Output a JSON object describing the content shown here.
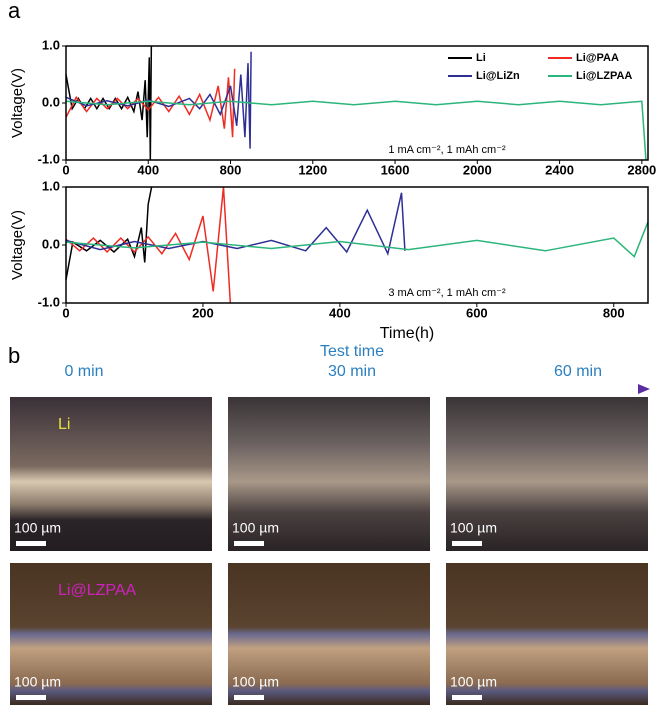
{
  "panel_a_label": "a",
  "chart_data": [
    {
      "type": "line",
      "ylabel": "Voltage(V)",
      "annotation": "1 mA cm⁻², 1 mAh cm⁻²",
      "xlim": [
        0,
        2830
      ],
      "xticks": [
        0,
        400,
        800,
        1200,
        1600,
        2000,
        2400,
        2800
      ],
      "ylim": [
        -1,
        1
      ],
      "yticks": [
        {
          "value": -1,
          "label": "-1.0"
        },
        {
          "value": 0,
          "label": "0.0"
        },
        {
          "value": 1,
          "label": "1.0"
        }
      ],
      "grid": false,
      "legend": "upper right",
      "series": [
        {
          "name": "Li",
          "color": "#000000",
          "x": [
            0,
            30,
            60,
            90,
            120,
            150,
            180,
            210,
            240,
            270,
            300,
            330,
            350,
            370,
            385,
            395,
            405,
            410,
            415
          ],
          "values": [
            0.5,
            -0.1,
            0.08,
            -0.1,
            0.08,
            -0.1,
            0.08,
            -0.1,
            0.08,
            -0.1,
            0.1,
            -0.15,
            0.2,
            -0.3,
            0.4,
            -0.6,
            0.8,
            -1.0,
            1.0
          ]
        },
        {
          "name": "Li@PAA",
          "color": "#ee2b24",
          "x": [
            0,
            50,
            100,
            150,
            200,
            250,
            300,
            350,
            400,
            450,
            500,
            550,
            600,
            650,
            700,
            740,
            770,
            790,
            810,
            820
          ],
          "values": [
            -0.25,
            0.1,
            -0.15,
            0.08,
            -0.1,
            0.08,
            -0.1,
            0.08,
            -0.12,
            0.1,
            -0.15,
            0.12,
            -0.2,
            0.15,
            -0.3,
            0.3,
            -0.45,
            0.45,
            -0.6,
            0.6
          ]
        },
        {
          "name": "Li@LiZn",
          "color": "#2e2f95",
          "x": [
            0,
            100,
            200,
            300,
            400,
            500,
            600,
            650,
            700,
            750,
            800,
            830,
            850,
            870,
            885,
            895,
            900
          ],
          "values": [
            0.1,
            -0.05,
            0.04,
            -0.05,
            0.05,
            -0.06,
            0.08,
            -0.1,
            0.15,
            -0.2,
            0.3,
            -0.4,
            0.5,
            -0.6,
            0.7,
            -0.8,
            0.9
          ]
        },
        {
          "name": "Li@LZPAA",
          "color": "#2bb57a",
          "x": [
            0,
            200,
            400,
            600,
            800,
            1000,
            1200,
            1400,
            1600,
            1800,
            2000,
            2200,
            2400,
            2600,
            2800,
            2820
          ],
          "values": [
            0.03,
            -0.03,
            0.03,
            -0.03,
            0.03,
            -0.03,
            0.03,
            -0.03,
            0.03,
            -0.03,
            0.03,
            -0.03,
            0.03,
            -0.03,
            0.03,
            -1.0
          ]
        }
      ]
    },
    {
      "type": "line",
      "ylabel": "Voltage(V)",
      "xlabel": "Time(h)",
      "annotation": "3 mA cm⁻², 1 mAh cm⁻²",
      "xlim": [
        0,
        850
      ],
      "xticks": [
        0,
        200,
        400,
        600,
        800
      ],
      "ylim": [
        -1,
        1
      ],
      "yticks": [
        {
          "value": -1,
          "label": "-1.0"
        },
        {
          "value": 0,
          "label": "0.0"
        },
        {
          "value": 1,
          "label": "1.0"
        }
      ],
      "grid": false,
      "series": [
        {
          "color": "#000000",
          "x": [
            0,
            10,
            30,
            50,
            70,
            90,
            100,
            110,
            115,
            120,
            125
          ],
          "values": [
            -0.6,
            0.05,
            -0.1,
            0.08,
            -0.12,
            0.1,
            -0.2,
            0.3,
            -0.3,
            0.7,
            1.0
          ]
        },
        {
          "color": "#ee2b24",
          "x": [
            0,
            20,
            40,
            60,
            80,
            100,
            120,
            140,
            160,
            180,
            200,
            215,
            230,
            240
          ],
          "values": [
            0.1,
            -0.1,
            0.12,
            -0.12,
            0.12,
            -0.12,
            0.14,
            -0.15,
            0.2,
            -0.25,
            0.5,
            -0.8,
            1.0,
            -1.0
          ]
        },
        {
          "color": "#2e2f95",
          "x": [
            0,
            50,
            100,
            150,
            200,
            250,
            300,
            350,
            380,
            410,
            440,
            470,
            490,
            495
          ],
          "values": [
            0.08,
            -0.08,
            0.06,
            -0.06,
            0.06,
            -0.06,
            0.08,
            -0.1,
            0.3,
            -0.12,
            0.6,
            -0.15,
            0.9,
            -0.1
          ]
        },
        {
          "color": "#2bb57a",
          "x": [
            0,
            100,
            200,
            300,
            400,
            500,
            600,
            700,
            800,
            830,
            850
          ],
          "values": [
            0.05,
            -0.05,
            0.05,
            -0.06,
            0.06,
            -0.08,
            0.08,
            -0.1,
            0.12,
            -0.2,
            0.4
          ]
        }
      ]
    }
  ],
  "panel_b": {
    "label": "b",
    "axis_title": "Test time",
    "times": [
      "0 min",
      "30 min",
      "60 min"
    ],
    "rows": [
      {
        "label": "Li",
        "scale_bars": [
          "100 µm",
          "100 µm",
          "100 µm"
        ]
      },
      {
        "label": "Li@LZPAA",
        "scale_bars": [
          "100 µm",
          "100 µm",
          "100 µm"
        ]
      }
    ]
  }
}
